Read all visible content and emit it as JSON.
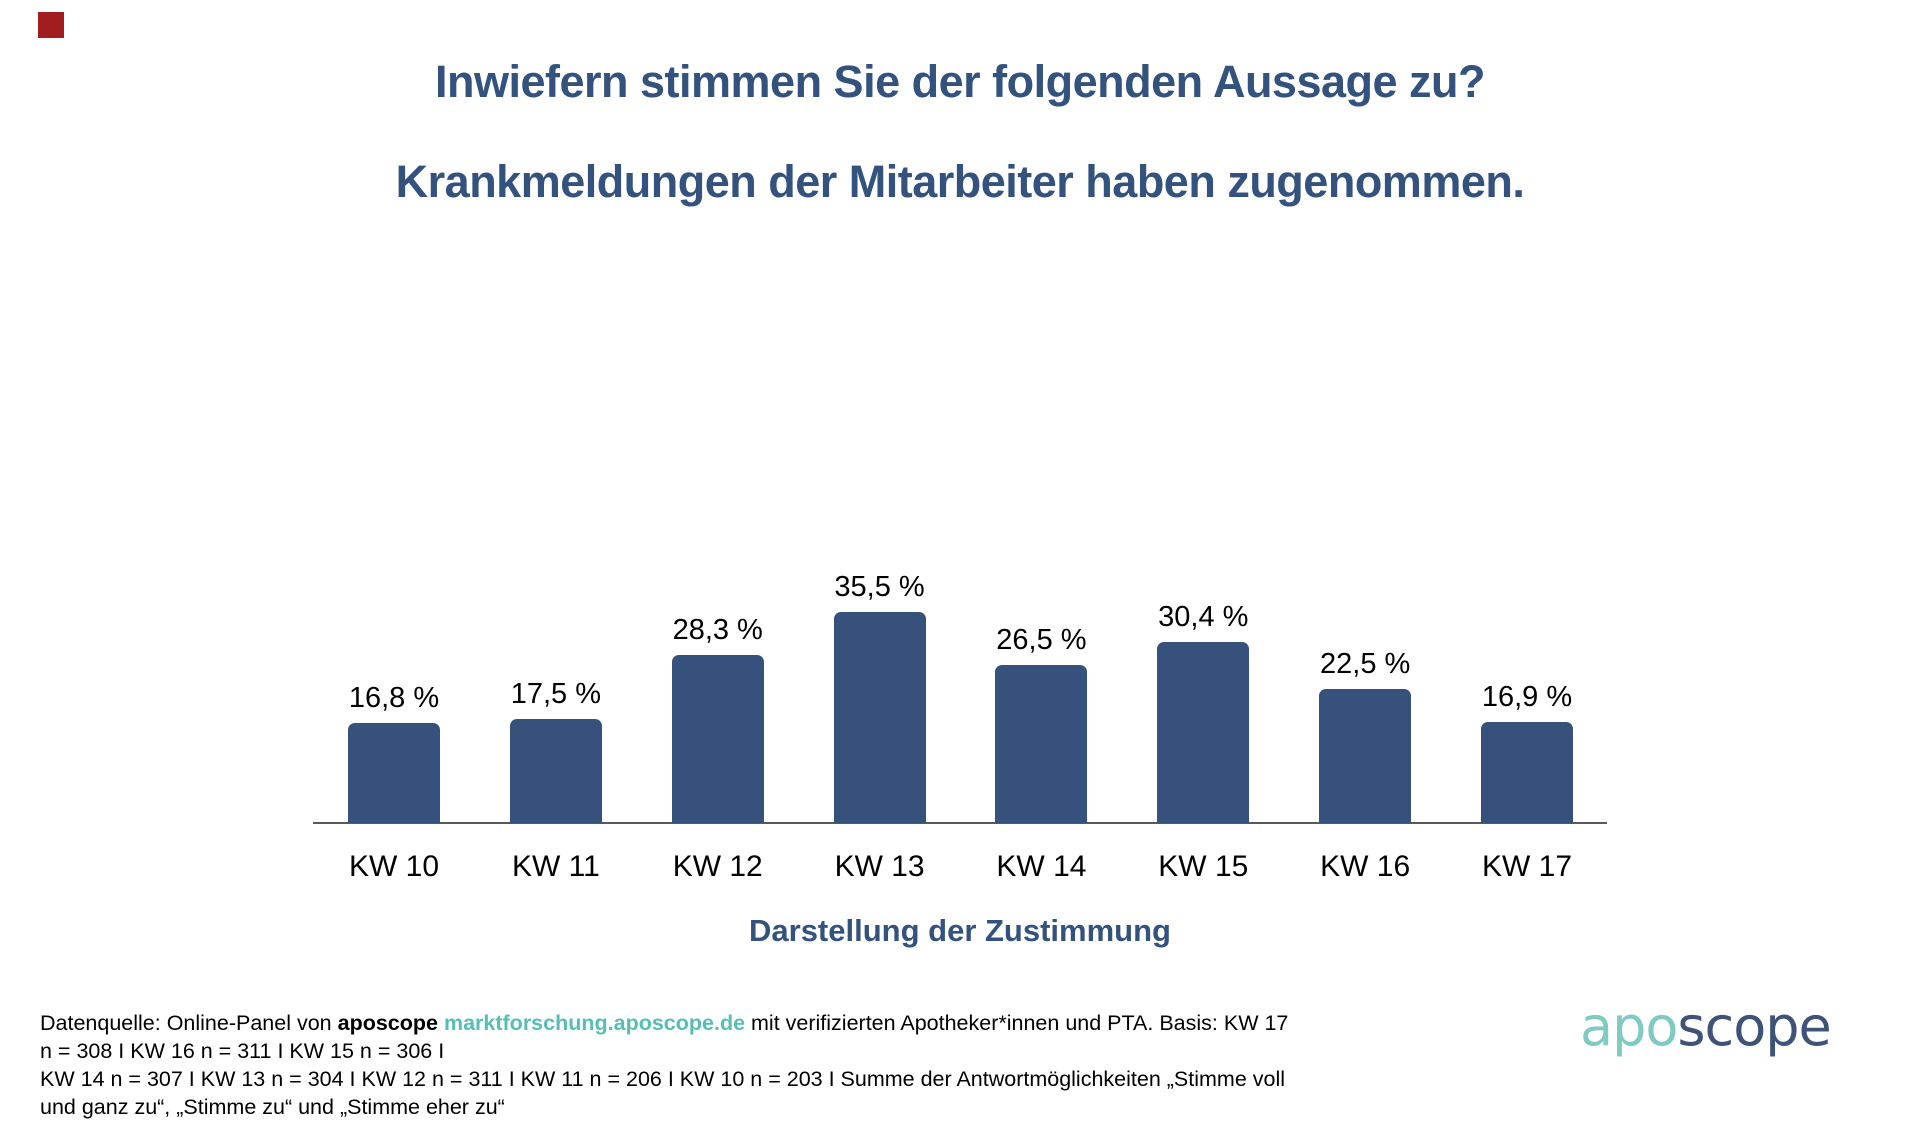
{
  "slide": {
    "title_line1": "Inwiefern stimmen Sie der folgenden Aussage zu?",
    "title_line2": "Krankmeldungen der Mitarbeiter haben zugenommen.",
    "title_color": "#33527E",
    "accent_square_color": "#A21E1E",
    "background_color": "#FFFFFF"
  },
  "chart_data": {
    "type": "bar",
    "categories": [
      "KW 10",
      "KW 11",
      "KW 12",
      "KW 13",
      "KW 14",
      "KW 15",
      "KW 16",
      "KW 17"
    ],
    "values": [
      16.8,
      17.5,
      28.3,
      35.5,
      26.5,
      30.4,
      22.5,
      16.9
    ],
    "value_labels": [
      "16,8 %",
      "17,5 %",
      "28,3 %",
      "35,5 %",
      "26,5 %",
      "30,4 %",
      "22,5 %",
      "16,9 %"
    ],
    "title": "",
    "xlabel": "Darstellung der Zustimmung",
    "ylabel": "",
    "ylim": [
      0,
      40
    ],
    "grid": false,
    "legend": false,
    "bar_color": "#36527C",
    "axis_color": "#595959",
    "value_label_color": "#000000",
    "category_label_color": "#000000"
  },
  "footer": {
    "line1_prefix": "Datenquelle: Online-Panel von ",
    "line1_brand": "aposcope",
    "line1_link": "marktforschung.aposcope.de",
    "line1_suffix": " mit verifizierten Apotheker*innen und PTA. Basis: KW 17 n = 308 I KW 16 n = 311 I KW 15 n = 306 I",
    "line2": "KW 14 n = 307 I KW 13 n = 304 I KW 12 n = 311 I KW 11 n = 206 I KW 10 n = 203 I Summe der Antwortmöglichkeiten „Stimme voll und ganz zu“, „Stimme zu“ und „Stimme eher zu“",
    "link_color": "#56BFB5"
  },
  "logo": {
    "part1": "apo",
    "part2": "scope",
    "part1_color": "#7FCBC4",
    "part2_color": "#3E5377"
  }
}
